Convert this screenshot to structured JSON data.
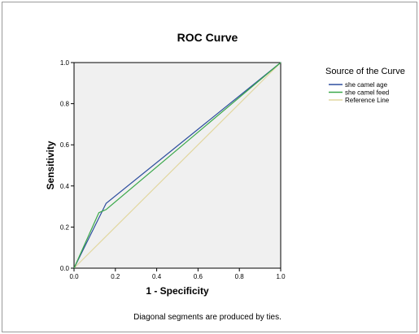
{
  "chart_data": {
    "type": "line",
    "title": "ROC Curve",
    "xlabel": "1 - Specificity",
    "ylabel": "Sensitivity",
    "xlim": [
      0,
      1
    ],
    "ylim": [
      0,
      1
    ],
    "x_ticks": [
      "0.0",
      "0.2",
      "0.4",
      "0.6",
      "0.8",
      "1.0"
    ],
    "y_ticks": [
      "0.0",
      "0.2",
      "0.4",
      "0.6",
      "0.8",
      "1.0"
    ],
    "grid": false,
    "legend": {
      "title": "Source of the Curve",
      "placement": "right"
    },
    "series": [
      {
        "name": "she camel age",
        "color": "#2f4f9f",
        "x": [
          0.0,
          0.155,
          1.0
        ],
        "y": [
          0.0,
          0.315,
          1.0
        ]
      },
      {
        "name": "she camel feed",
        "color": "#3aa84a",
        "x": [
          0.0,
          0.12,
          0.155,
          1.0
        ],
        "y": [
          0.0,
          0.27,
          0.285,
          1.0
        ]
      },
      {
        "name": "Reference Line",
        "color": "#e2d7a0",
        "x": [
          0.0,
          1.0
        ],
        "y": [
          0.0,
          1.0
        ]
      }
    ],
    "footnote": "Diagonal segments are produced by ties."
  }
}
